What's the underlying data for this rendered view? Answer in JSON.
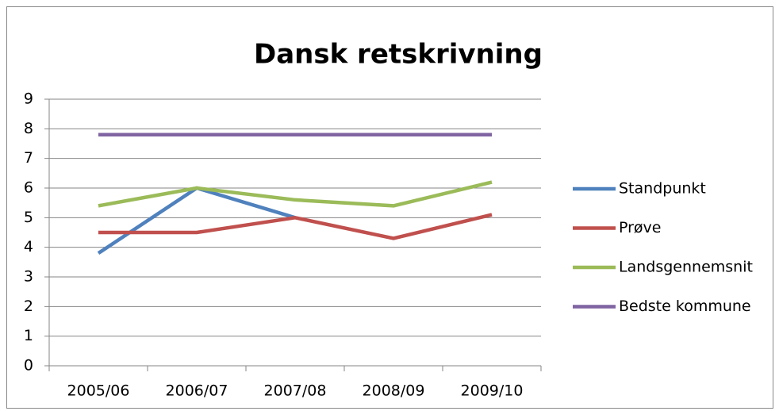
{
  "chart_data": {
    "type": "line",
    "title": "Dansk retskrivning",
    "categories": [
      "2005/06",
      "2006/07",
      "2007/08",
      "2008/09",
      "2009/10"
    ],
    "series": [
      {
        "name": "Standpunkt",
        "color": "#4f81bd",
        "values": [
          3.8,
          6.0,
          5.0,
          null,
          null
        ]
      },
      {
        "name": "Prøve",
        "color": "#c0504d",
        "values": [
          4.5,
          4.5,
          5.0,
          4.3,
          5.1
        ]
      },
      {
        "name": "Landsgennemsnit",
        "color": "#9bbb59",
        "values": [
          5.4,
          6.0,
          5.6,
          5.4,
          6.2
        ]
      },
      {
        "name": "Bedste kommune",
        "color": "#8064a2",
        "values": [
          7.8,
          7.8,
          7.8,
          7.8,
          7.8
        ]
      }
    ],
    "ylim": [
      0,
      9
    ],
    "yticks": [
      0,
      1,
      2,
      3,
      4,
      5,
      6,
      7,
      8,
      9
    ],
    "grid": true,
    "legend": "right"
  }
}
